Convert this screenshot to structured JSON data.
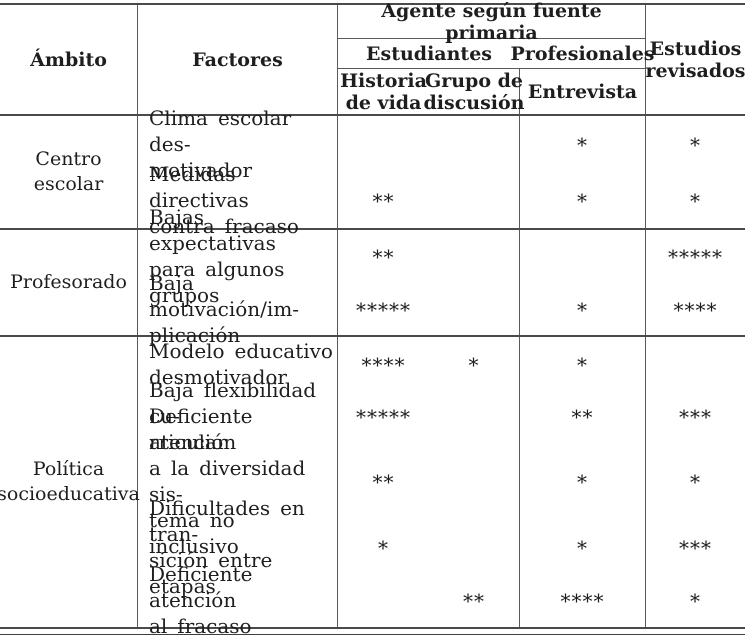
{
  "table": {
    "header": {
      "ambito": "Ámbito",
      "factores": "Factores",
      "agente": "Agente según fuente primaria",
      "estudiantes": "Estudiantes",
      "profesionales": "Profesionales",
      "historia": "Historia\nde vida",
      "grupo": "Grupo de\ndiscusión",
      "entrevista": "Entrevista",
      "estudios": "Estudios\nrevisados"
    },
    "sections": [
      {
        "ambito": "Centro\nescolar",
        "rows": [
          {
            "factor": "Clima escolar des-\nmotivador",
            "historia": "",
            "grupo": "",
            "entrevista": "*",
            "estudios": "*"
          },
          {
            "factor": "Medidas directivas\ncontra fracaso",
            "historia": "**",
            "grupo": "",
            "entrevista": "*",
            "estudios": "*"
          }
        ]
      },
      {
        "ambito": "Profesorado",
        "rows": [
          {
            "factor": "Bajas expectativas\npara algunos grupos",
            "historia": "**",
            "grupo": "",
            "entrevista": "",
            "estudios": "*****"
          },
          {
            "factor": "Baja motivación/im-\nplicación",
            "historia": "*****",
            "grupo": "",
            "entrevista": "*",
            "estudios": "****"
          }
        ]
      },
      {
        "ambito": "Política\nsocioeducativa",
        "rows": [
          {
            "factor": "Modelo educativo\ndesmotivador",
            "historia": "****",
            "grupo": "*",
            "entrevista": "*",
            "estudios": ""
          },
          {
            "factor": "Baja flexibilidad cu-\nrricular",
            "historia": "*****",
            "grupo": "",
            "entrevista": "**",
            "estudios": "***"
          },
          {
            "factor": "Deficiente atención\na la diversidad sis-\ntema no inclusivo",
            "historia": "**",
            "grupo": "",
            "entrevista": "*",
            "estudios": "*"
          },
          {
            "factor": "Dificultades en tran-\nsición entre etapas",
            "historia": "*",
            "grupo": "",
            "entrevista": "*",
            "estudios": "***"
          },
          {
            "factor": "Deficiente atención\nal fracaso",
            "historia": "",
            "grupo": "**",
            "entrevista": "****",
            "estudios": "*"
          }
        ]
      }
    ]
  }
}
